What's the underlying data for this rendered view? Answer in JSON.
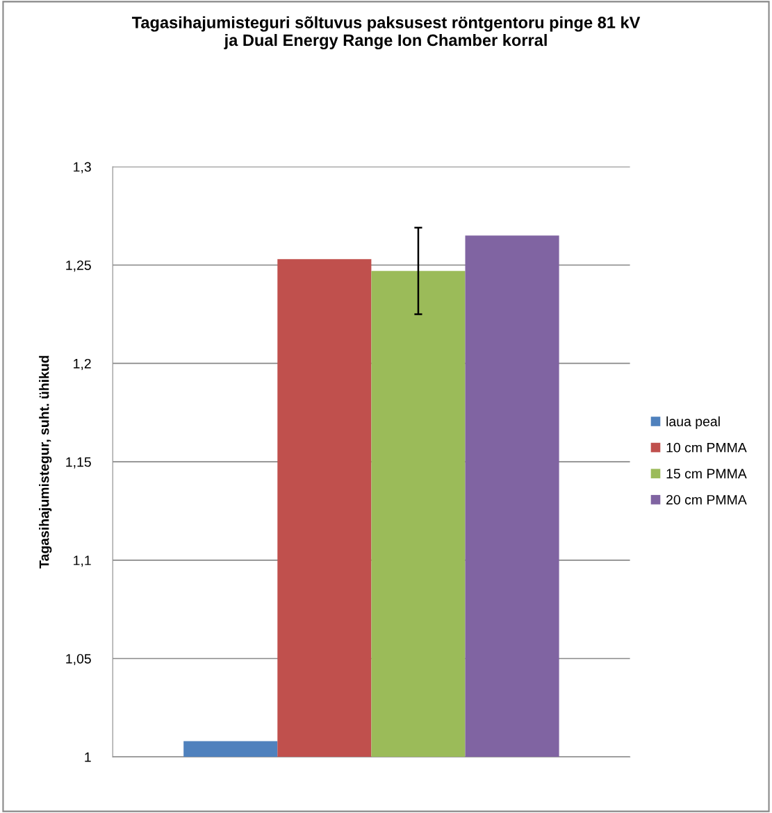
{
  "chart_data": {
    "type": "bar",
    "title": "Tagasihajumisteguri sõltuvus paksusest röntgentoru pinge 81 kV\nja Dual Energy Range Ion Chamber korral",
    "ylabel": "Tagasihajumistegur, suht. ühikud",
    "categories": [
      null
    ],
    "series": [
      {
        "name": "laua peal",
        "color": "#4f81bd",
        "values": [
          1.008
        ]
      },
      {
        "name": "10 cm PMMA",
        "color": "#c0504d",
        "values": [
          1.253
        ]
      },
      {
        "name": "15 cm PMMA",
        "color": "#9bbb59",
        "values": [
          1.247
        ],
        "errors": [
          0.022
        ]
      },
      {
        "name": "20 cm PMMA",
        "color": "#8064a2",
        "values": [
          1.265
        ]
      }
    ],
    "ylim": [
      1,
      1.3
    ],
    "yticks": [
      {
        "value": 1,
        "label": "1"
      },
      {
        "value": 1.05,
        "label": "1,05"
      },
      {
        "value": 1.1,
        "label": "1,1"
      },
      {
        "value": 1.15,
        "label": "1,15"
      },
      {
        "value": 1.2,
        "label": "1,2"
      },
      {
        "value": 1.25,
        "label": "1,25"
      },
      {
        "value": 1.3,
        "label": "1,3"
      }
    ],
    "grid": "y",
    "legend": "right"
  }
}
